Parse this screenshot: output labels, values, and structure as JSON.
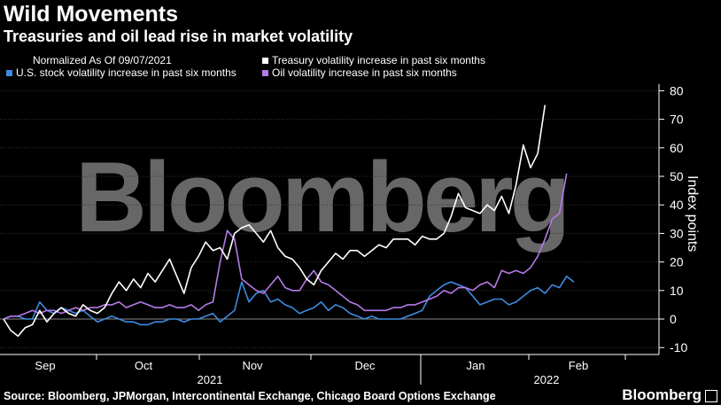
{
  "title": "Wild Movements",
  "subtitle": "Treasuries and oil lead rise in market volatility",
  "note": "Normalized As Of 09/07/2021",
  "source": "Source: Bloomberg, JPMorgan, Intercontinental Exchange, Chicago Board Options Exchange",
  "brand": "Bloomberg",
  "watermark": "Bloomberg",
  "colors": {
    "treasury": "#ffffff",
    "stocks": "#3d8be0",
    "oil": "#b57ae8",
    "background": "#000000"
  },
  "chart_data": {
    "type": "line",
    "ylabel": "Index points",
    "ylim": [
      -14,
      82
    ],
    "yticks": [
      80,
      70,
      60,
      50,
      40,
      30,
      20,
      10,
      0,
      -10
    ],
    "month_ticks": [
      "Sep",
      "Oct",
      "Nov",
      "Dec",
      "Jan",
      "Feb"
    ],
    "year_labels": [
      "2021",
      "2022"
    ],
    "grid": true,
    "legend_position": "top",
    "x": [
      "2021-09-07",
      "2021-09-09",
      "2021-09-11",
      "2021-09-13",
      "2021-09-15",
      "2021-09-17",
      "2021-09-19",
      "2021-09-21",
      "2021-09-23",
      "2021-09-25",
      "2021-09-27",
      "2021-09-29",
      "2021-10-01",
      "2021-10-03",
      "2021-10-05",
      "2021-10-07",
      "2021-10-09",
      "2021-10-11",
      "2021-10-13",
      "2021-10-15",
      "2021-10-17",
      "2021-10-19",
      "2021-10-21",
      "2021-10-23",
      "2021-10-25",
      "2021-10-27",
      "2021-10-29",
      "2021-10-31",
      "2021-11-02",
      "2021-11-04",
      "2021-11-06",
      "2021-11-08",
      "2021-11-10",
      "2021-11-12",
      "2021-11-14",
      "2021-11-16",
      "2021-11-18",
      "2021-11-20",
      "2021-11-22",
      "2021-11-24",
      "2021-11-26",
      "2021-11-28",
      "2021-11-30",
      "2021-12-02",
      "2021-12-04",
      "2021-12-06",
      "2021-12-08",
      "2021-12-10",
      "2021-12-12",
      "2021-12-14",
      "2021-12-16",
      "2021-12-18",
      "2021-12-20",
      "2021-12-22",
      "2021-12-24",
      "2021-12-26",
      "2021-12-28",
      "2021-12-30",
      "2022-01-01",
      "2022-01-03",
      "2022-01-05",
      "2022-01-07",
      "2022-01-09",
      "2022-01-11",
      "2022-01-13",
      "2022-01-15",
      "2022-01-17",
      "2022-01-19",
      "2022-01-21",
      "2022-01-23",
      "2022-01-25",
      "2022-01-27",
      "2022-01-29",
      "2022-01-31",
      "2022-02-02",
      "2022-02-04",
      "2022-02-06",
      "2022-02-08",
      "2022-02-10",
      "2022-02-12",
      "2022-02-14",
      "2022-02-16",
      "2022-02-18",
      "2022-02-20",
      "2022-02-22",
      "2022-02-24",
      "2022-02-26",
      "2022-02-28",
      "2022-03-02",
      "2022-03-04",
      "2022-03-06",
      "2022-03-08"
    ],
    "series": [
      {
        "name": "Treasury volatility increase in past six months",
        "color_key": "treasury",
        "values": [
          0,
          -4,
          -6,
          -3,
          -2,
          3,
          -1,
          2,
          4,
          2,
          1,
          5,
          3,
          2,
          4,
          9,
          13,
          10,
          14,
          11,
          16,
          13,
          17,
          21,
          15,
          9,
          18,
          22,
          27,
          24,
          25,
          21,
          30,
          32,
          33,
          30,
          27,
          31,
          25,
          22,
          21,
          18,
          14,
          12,
          17,
          20,
          23,
          21,
          24,
          24,
          22,
          24,
          26,
          25,
          28,
          28,
          28,
          26,
          29,
          28,
          28,
          30,
          36,
          44,
          39,
          38,
          37,
          40,
          38,
          43,
          37,
          47,
          61,
          53,
          58,
          75,
          null,
          null,
          null,
          null,
          null,
          null,
          null,
          null,
          null,
          null,
          null,
          null,
          null,
          null,
          null,
          null
        ]
      },
      {
        "name": "U.S. stock volatility increase in past six months",
        "color_key": "stocks",
        "values": [
          0,
          1,
          1,
          0,
          0,
          6,
          3,
          2,
          4,
          3,
          2,
          3,
          1,
          -1,
          0,
          1,
          0,
          -1,
          -1,
          -2,
          -2,
          -1,
          -1,
          0,
          0,
          -1,
          0,
          0,
          1,
          2,
          -1,
          1,
          3,
          13,
          6,
          9,
          10,
          6,
          7,
          5,
          4,
          2,
          3,
          4,
          6,
          3,
          5,
          4,
          2,
          1,
          0,
          1,
          0,
          0,
          0,
          0,
          1,
          2,
          3,
          8,
          10,
          12,
          13,
          12,
          11,
          8,
          5,
          6,
          7,
          7,
          5,
          6,
          8,
          10,
          11,
          9,
          12,
          11,
          15,
          13,
          null,
          null,
          null,
          null,
          null,
          null,
          null,
          null,
          null,
          null,
          null,
          null
        ]
      },
      {
        "name": "Oil volatility increase in past six months",
        "color_key": "oil",
        "values": [
          0,
          1,
          1,
          2,
          3,
          2,
          3,
          3,
          2,
          3,
          4,
          3,
          4,
          4,
          5,
          5,
          6,
          4,
          5,
          6,
          5,
          4,
          4,
          5,
          4,
          4,
          5,
          3,
          5,
          6,
          20,
          31,
          28,
          14,
          12,
          10,
          9,
          12,
          15,
          11,
          10,
          10,
          14,
          17,
          13,
          12,
          10,
          8,
          6,
          5,
          3,
          3,
          3,
          3,
          4,
          4,
          5,
          5,
          6,
          7,
          8,
          10,
          9,
          11,
          11,
          10,
          12,
          13,
          11,
          17,
          16,
          17,
          16,
          18,
          22,
          28,
          35,
          37,
          51,
          null,
          null,
          null,
          null,
          null,
          null,
          null,
          null,
          null,
          null,
          null,
          null,
          null
        ]
      }
    ]
  }
}
